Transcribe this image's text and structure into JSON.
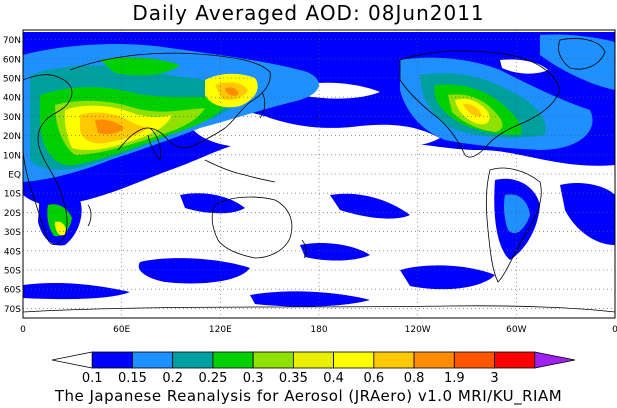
{
  "title": "Daily Averaged AOD: 08Jun2011",
  "footer": "The Japanese Reanalysis for Aerosol (JRAero) v1.0 MRI/KU_RIAM",
  "map": {
    "lat_labels": [
      "70N",
      "60N",
      "50N",
      "40N",
      "30N",
      "20N",
      "10N",
      "EQ",
      "10S",
      "20S",
      "30S",
      "40S",
      "50S",
      "60S",
      "70S"
    ],
    "lon_labels": [
      "0",
      "60E",
      "120E",
      "180",
      "120W",
      "60W",
      "0"
    ],
    "lat_range": [
      -75,
      75
    ],
    "lon_range": [
      0,
      360
    ],
    "grid": "dotted"
  },
  "colorbar": {
    "levels": [
      "0.1",
      "0.15",
      "0.2",
      "0.25",
      "0.3",
      "0.35",
      "0.4",
      "0.6",
      "0.8",
      "1.9",
      "3"
    ],
    "colors": [
      "#ffffff",
      "#0000ff",
      "#1e90ff",
      "#00a0a0",
      "#00d000",
      "#90e000",
      "#e8f000",
      "#ffff00",
      "#ffc800",
      "#ff8c00",
      "#ff5500",
      "#ff0000",
      "#a020f0"
    ]
  }
}
